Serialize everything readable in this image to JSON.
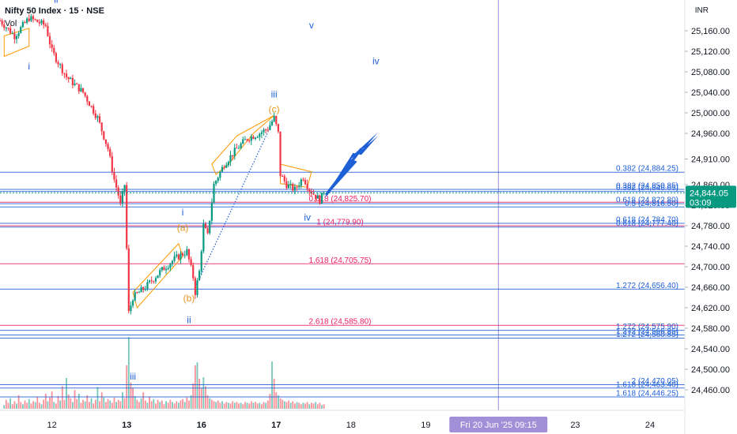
{
  "header": {
    "symbol": "Nifty 50 Index · 15 · NSE",
    "indicator": "Vol",
    "currency": "INR"
  },
  "current_price": {
    "value": 24844.05,
    "label": "24,844.05",
    "countdown": "03:09",
    "color": "#089981"
  },
  "crosshair_date": "Fri 20 Jun '25   09:15",
  "colors": {
    "up": "#089981",
    "down": "#f23645",
    "blue": "#1f5fd6",
    "red": "#e91e63",
    "orange": "#ff9800"
  },
  "chart_data": {
    "type": "candlestick",
    "ylim": [
      24420,
      25220
    ],
    "y_ticks": [
      "24,460.00",
      "24,500.00",
      "24,540.00",
      "24,580.00",
      "24,620.00",
      "24,660.00",
      "24,700.00",
      "24,740.00",
      "24,780.00",
      "24,820.00",
      "24,860.00",
      "24,910.00",
      "24,960.00",
      "25,000.00",
      "25,040.00",
      "25,080.00",
      "25,120.00",
      "25,160.00"
    ],
    "y_tick_values": [
      24460,
      24500,
      24540,
      24580,
      24620,
      24660,
      24700,
      24740,
      24780,
      24820,
      24860,
      24910,
      24960,
      25000,
      25040,
      25080,
      25120,
      25160
    ],
    "x_ticks": [
      {
        "label": "12",
        "t": 3
      },
      {
        "label": "13",
        "t": 39
      },
      {
        "label": "16",
        "t": 75
      },
      {
        "label": "17",
        "t": 111
      },
      {
        "label": "18",
        "t": 147
      },
      {
        "label": "19",
        "t": 183
      },
      {
        "label": "23",
        "t": 255
      },
      {
        "label": "24",
        "t": 291
      }
    ],
    "x_range": [
      -22,
      307
    ],
    "crosshair_t": 218,
    "last_close": 24844.05,
    "key_points": [
      {
        "t": -22,
        "price": 25180
      },
      {
        "t": -15,
        "price": 25150
      },
      {
        "t": -8,
        "price": 25185
      },
      {
        "t": 0,
        "price": 25170
      },
      {
        "t": 3,
        "price": 25120
      },
      {
        "t": 10,
        "price": 25070
      },
      {
        "t": 18,
        "price": 25040
      },
      {
        "t": 25,
        "price": 24990
      },
      {
        "t": 30,
        "price": 24930
      },
      {
        "t": 33,
        "price": 24870
      },
      {
        "t": 35,
        "price": 24840
      },
      {
        "t": 36,
        "price": 24820
      },
      {
        "t": 38,
        "price": 24860
      },
      {
        "t": 40,
        "price": 24610
      },
      {
        "t": 42,
        "price": 24640
      },
      {
        "t": 48,
        "price": 24660
      },
      {
        "t": 55,
        "price": 24690
      },
      {
        "t": 62,
        "price": 24715
      },
      {
        "t": 68,
        "price": 24730
      },
      {
        "t": 71,
        "price": 24680
      },
      {
        "t": 72,
        "price": 24650
      },
      {
        "t": 74,
        "price": 24690
      },
      {
        "t": 76,
        "price": 24780
      },
      {
        "t": 78,
        "price": 24760
      },
      {
        "t": 81,
        "price": 24860
      },
      {
        "t": 86,
        "price": 24900
      },
      {
        "t": 92,
        "price": 24930
      },
      {
        "t": 97,
        "price": 24950
      },
      {
        "t": 103,
        "price": 24960
      },
      {
        "t": 107,
        "price": 24970
      },
      {
        "t": 110,
        "price": 24990
      },
      {
        "t": 112,
        "price": 24960
      },
      {
        "t": 113,
        "price": 24880
      },
      {
        "t": 116,
        "price": 24860
      },
      {
        "t": 120,
        "price": 24850
      },
      {
        "t": 124,
        "price": 24875
      },
      {
        "t": 127,
        "price": 24850
      },
      {
        "t": 130,
        "price": 24838
      },
      {
        "t": 132,
        "price": 24830
      },
      {
        "t": 134,
        "price": 24844.05
      }
    ],
    "volume_bars": [
      [
        -20,
        5
      ],
      [
        -19,
        12
      ],
      [
        -18,
        8
      ],
      [
        -17,
        14
      ],
      [
        -16,
        6
      ],
      [
        -15,
        10
      ],
      [
        -14,
        7
      ],
      [
        -13,
        18
      ],
      [
        -12,
        9
      ],
      [
        -11,
        6
      ],
      [
        -10,
        11
      ],
      [
        -9,
        8
      ],
      [
        -8,
        13
      ],
      [
        -7,
        7
      ],
      [
        -6,
        10
      ],
      [
        -5,
        9
      ],
      [
        -4,
        16
      ],
      [
        -3,
        8
      ],
      [
        -2,
        6
      ],
      [
        -1,
        12
      ],
      [
        0,
        20
      ],
      [
        1,
        10
      ],
      [
        2,
        15
      ],
      [
        3,
        23
      ],
      [
        4,
        9
      ],
      [
        5,
        7
      ],
      [
        6,
        17
      ],
      [
        7,
        11
      ],
      [
        8,
        30
      ],
      [
        9,
        12
      ],
      [
        10,
        41
      ],
      [
        11,
        19
      ],
      [
        12,
        14
      ],
      [
        13,
        9
      ],
      [
        14,
        25
      ],
      [
        15,
        13
      ],
      [
        16,
        20
      ],
      [
        17,
        8
      ],
      [
        18,
        12
      ],
      [
        19,
        10
      ],
      [
        20,
        18
      ],
      [
        21,
        9
      ],
      [
        22,
        14
      ],
      [
        23,
        7
      ],
      [
        24,
        12
      ],
      [
        25,
        29
      ],
      [
        26,
        10
      ],
      [
        27,
        22
      ],
      [
        28,
        15
      ],
      [
        29,
        9
      ],
      [
        30,
        13
      ],
      [
        31,
        11
      ],
      [
        32,
        8
      ],
      [
        33,
        15
      ],
      [
        34,
        9
      ],
      [
        35,
        12
      ],
      [
        36,
        10
      ],
      [
        37,
        22
      ],
      [
        38,
        14
      ],
      [
        39,
        58
      ],
      [
        40,
        96
      ],
      [
        41,
        35
      ],
      [
        42,
        28
      ],
      [
        43,
        17
      ],
      [
        44,
        12
      ],
      [
        45,
        9
      ],
      [
        46,
        14
      ],
      [
        47,
        22
      ],
      [
        48,
        11
      ],
      [
        49,
        8
      ],
      [
        50,
        16
      ],
      [
        51,
        10
      ],
      [
        52,
        13
      ],
      [
        53,
        7
      ],
      [
        54,
        12
      ],
      [
        55,
        9
      ],
      [
        56,
        11
      ],
      [
        57,
        6
      ],
      [
        58,
        10
      ],
      [
        59,
        8
      ],
      [
        60,
        12
      ],
      [
        61,
        9
      ],
      [
        62,
        7
      ],
      [
        63,
        10
      ],
      [
        64,
        8
      ],
      [
        65,
        11
      ],
      [
        66,
        13
      ],
      [
        67,
        9
      ],
      [
        68,
        15
      ],
      [
        69,
        11
      ],
      [
        70,
        18
      ],
      [
        71,
        34
      ],
      [
        72,
        58
      ],
      [
        73,
        62
      ],
      [
        74,
        40
      ],
      [
        75,
        28
      ],
      [
        76,
        42
      ],
      [
        77,
        30
      ],
      [
        78,
        18
      ],
      [
        79,
        14
      ],
      [
        80,
        12
      ],
      [
        81,
        10
      ],
      [
        82,
        9
      ],
      [
        83,
        11
      ],
      [
        84,
        8
      ],
      [
        85,
        10
      ],
      [
        86,
        7
      ],
      [
        87,
        9
      ],
      [
        88,
        8
      ],
      [
        89,
        7
      ],
      [
        90,
        10
      ],
      [
        91,
        8
      ],
      [
        92,
        9
      ],
      [
        93,
        7
      ],
      [
        94,
        8
      ],
      [
        95,
        6
      ],
      [
        96,
        9
      ],
      [
        97,
        8
      ],
      [
        98,
        7
      ],
      [
        99,
        10
      ],
      [
        100,
        8
      ],
      [
        101,
        9
      ],
      [
        102,
        7
      ],
      [
        103,
        8
      ],
      [
        104,
        6
      ],
      [
        105,
        9
      ],
      [
        106,
        8
      ],
      [
        107,
        11
      ],
      [
        108,
        20
      ],
      [
        109,
        63
      ],
      [
        110,
        40
      ],
      [
        111,
        22
      ],
      [
        112,
        18
      ],
      [
        113,
        14
      ],
      [
        114,
        12
      ],
      [
        115,
        10
      ],
      [
        116,
        9
      ],
      [
        117,
        11
      ],
      [
        118,
        8
      ],
      [
        119,
        10
      ],
      [
        120,
        7
      ],
      [
        121,
        9
      ],
      [
        122,
        8
      ],
      [
        123,
        6
      ],
      [
        124,
        8
      ],
      [
        125,
        7
      ],
      [
        126,
        9
      ],
      [
        127,
        6
      ],
      [
        128,
        8
      ],
      [
        129,
        7
      ],
      [
        130,
        9
      ],
      [
        131,
        6
      ],
      [
        132,
        8
      ],
      [
        133,
        5
      ],
      [
        134,
        6
      ]
    ]
  },
  "levels": [
    {
      "label": "0.382 (24,884.25)",
      "price": 24884.25,
      "color": "#1f5fd6",
      "side": "right"
    },
    {
      "label": "0.382 (24,850.85)",
      "price": 24850.85,
      "color": "#1f5fd6",
      "side": "right"
    },
    {
      "label": "0.382 (24,846.65)",
      "price": 24846.65,
      "color": "#1f5fd6",
      "side": "right"
    },
    {
      "label": "0.618 (24,825.70)",
      "price": 24825.7,
      "color": "#e91e63",
      "side": "left"
    },
    {
      "label": "0.618 (24,822.80)",
      "price": 24822.8,
      "color": "#1f5fd6",
      "side": "right"
    },
    {
      "label": "0.5 (24,816.50)",
      "price": 24816.5,
      "color": "#1f5fd6",
      "side": "right"
    },
    {
      "label": "0.618 (24,784.70)",
      "price": 24784.7,
      "color": "#1f5fd6",
      "side": "right"
    },
    {
      "label": "1 (24,779.90)",
      "price": 24779.9,
      "color": "#e91e63",
      "side": "left"
    },
    {
      "label": "0.618 (24,777.40)",
      "price": 24777.4,
      "color": "#1f5fd6",
      "side": "right"
    },
    {
      "label": "1.618 (24,705.75)",
      "price": 24705.75,
      "color": "#e91e63",
      "side": "left"
    },
    {
      "label": "1.272 (24,656.40)",
      "price": 24656.4,
      "color": "#1f5fd6",
      "side": "right"
    },
    {
      "label": "2.618 (24,585.80)",
      "price": 24585.8,
      "color": "#e91e63",
      "side": "left"
    },
    {
      "label": "1.272 (24,575.90)",
      "price": 24575.9,
      "color": "#1f5fd6",
      "side": "right"
    },
    {
      "label": "1.272 (24,566.85)",
      "price": 24566.85,
      "color": "#1f5fd6",
      "side": "right"
    },
    {
      "label": "1.272 (24,560.85)",
      "price": 24560.85,
      "color": "#1f5fd6",
      "side": "right"
    },
    {
      "label": "2 (24,470.05)",
      "price": 24470.05,
      "color": "#1f5fd6",
      "side": "right"
    },
    {
      "label": "1.618 (24,463.40)",
      "price": 24463.4,
      "color": "#1f5fd6",
      "side": "right"
    },
    {
      "label": "1.618 (24,446.25)",
      "price": 24446.25,
      "color": "#1f5fd6",
      "side": "right"
    }
  ],
  "wave_labels": [
    {
      "text": "ii",
      "t": 5,
      "price": 25215,
      "color": "#1f5fd6"
    },
    {
      "text": "i",
      "t": -8,
      "price": 25085,
      "color": "#1f5fd6"
    },
    {
      "text": "v",
      "t": 128,
      "price": 25165,
      "color": "#1f5fd6"
    },
    {
      "text": "iv",
      "t": 159,
      "price": 25095,
      "color": "#1f5fd6"
    },
    {
      "text": "iii",
      "t": 110,
      "price": 25030,
      "color": "#1f5fd6"
    },
    {
      "text": "(c)",
      "t": 110,
      "price": 25001,
      "color": "#e6951c"
    },
    {
      "text": "i",
      "t": 66,
      "price": 24800,
      "color": "#1f5fd6"
    },
    {
      "text": "(a)",
      "t": 66,
      "price": 24770,
      "color": "#e6951c"
    },
    {
      "text": "(b)",
      "t": 69,
      "price": 24632,
      "color": "#e6951c"
    },
    {
      "text": "ii",
      "t": 69,
      "price": 24590,
      "color": "#1f5fd6"
    },
    {
      "text": "iv",
      "t": 126,
      "price": 24790,
      "color": "#1f5fd6"
    },
    {
      "text": "iii",
      "t": 42,
      "price": 24480,
      "color": "#1f5fd6"
    }
  ]
}
